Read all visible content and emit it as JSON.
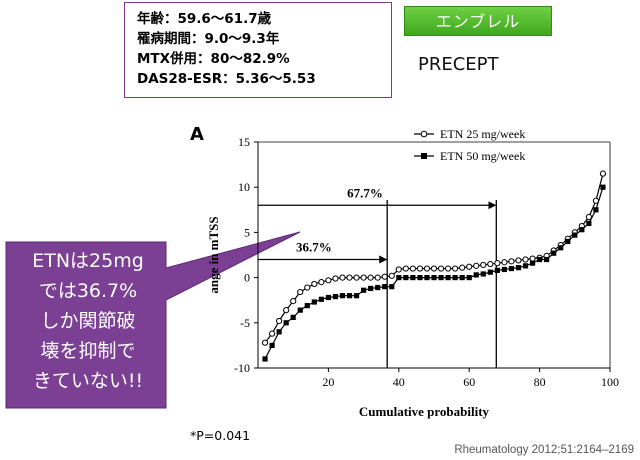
{
  "info_box": {
    "lines": [
      "年齢：59.6〜61.7歳",
      "罹病期間：9.0〜9.3年",
      "MTX併用：80〜82.9%",
      "DAS28-ESR：5.36〜5.53"
    ]
  },
  "drug_badge": "エンブレル",
  "study_name": "PRECEPT",
  "callout": {
    "lines": [
      "ETNは25mg",
      "では36.7%",
      "しか関節破",
      "壊を抑制で",
      "きていない!!"
    ]
  },
  "footnote": "*P=0.041",
  "citation": "Rheumatology 2012;51:2164–2169",
  "colors": {
    "callout_fill": "#7b3f93",
    "badge_green": "#4cb82a",
    "box_border": "#7a3c8c"
  },
  "chart_data": {
    "type": "line",
    "panel_label": "A",
    "xlabel": "Cumulative probability",
    "ylabel": "ange in mTSS",
    "xlim": [
      0,
      100
    ],
    "ylim": [
      -10,
      15
    ],
    "xticks": [
      20,
      40,
      60,
      80,
      100
    ],
    "yticks": [
      -10,
      -5,
      0,
      5,
      10,
      15
    ],
    "legend_position": "top-right",
    "series": [
      {
        "name": "ETN 25 mg/week",
        "marker": "open-circle",
        "x": [
          2,
          4,
          6,
          8,
          10,
          12,
          14,
          16,
          18,
          20,
          22,
          24,
          26,
          28,
          30,
          32,
          34,
          36,
          38,
          40,
          42,
          44,
          46,
          48,
          50,
          52,
          54,
          56,
          58,
          60,
          62,
          64,
          66,
          68,
          70,
          72,
          74,
          76,
          78,
          80,
          82,
          84,
          86,
          88,
          90,
          92,
          94,
          96,
          98
        ],
        "values": [
          -7.2,
          -6.2,
          -4.8,
          -3.6,
          -2.6,
          -1.6,
          -1.1,
          -0.7,
          -0.5,
          -0.3,
          -0.1,
          0,
          0,
          0,
          0,
          0,
          0,
          0.1,
          0.2,
          0.9,
          1,
          1,
          1,
          1,
          1,
          1,
          1,
          1,
          1.1,
          1.2,
          1.3,
          1.4,
          1.5,
          1.6,
          1.7,
          1.8,
          1.9,
          2,
          2.1,
          2.2,
          2.4,
          3,
          3.6,
          4.3,
          5,
          5.7,
          6.7,
          8.5,
          11.5
        ]
      },
      {
        "name": "ETN 50 mg/week",
        "marker": "filled-square",
        "x": [
          2,
          4,
          6,
          8,
          10,
          12,
          14,
          16,
          18,
          20,
          22,
          24,
          26,
          28,
          30,
          32,
          34,
          36,
          38,
          40,
          42,
          44,
          46,
          48,
          50,
          52,
          54,
          56,
          58,
          60,
          62,
          64,
          66,
          68,
          70,
          72,
          74,
          76,
          78,
          80,
          82,
          84,
          86,
          88,
          90,
          92,
          94,
          96,
          98
        ],
        "values": [
          -9,
          -7.5,
          -6,
          -5,
          -4.4,
          -3.6,
          -3.1,
          -2.7,
          -2.4,
          -2.2,
          -2.1,
          -2,
          -2,
          -2,
          -1.4,
          -1.2,
          -1.1,
          -1,
          -1,
          0,
          0,
          0,
          0,
          0,
          0,
          0,
          0,
          0,
          0,
          0,
          0.3,
          0.4,
          0.6,
          0.8,
          0.9,
          1,
          1.1,
          1.3,
          1.6,
          2,
          2,
          2.7,
          3.3,
          4,
          4.7,
          5.3,
          6,
          7.5,
          10
        ]
      }
    ],
    "annotations": [
      {
        "label": "67.7%",
        "x_start": 0,
        "x_end": 67.7,
        "y": 8
      },
      {
        "label": "36.7%",
        "x_start": 0,
        "x_end": 36.7,
        "y": 2
      }
    ],
    "reference_lines_x": [
      36.7,
      67.7
    ]
  }
}
